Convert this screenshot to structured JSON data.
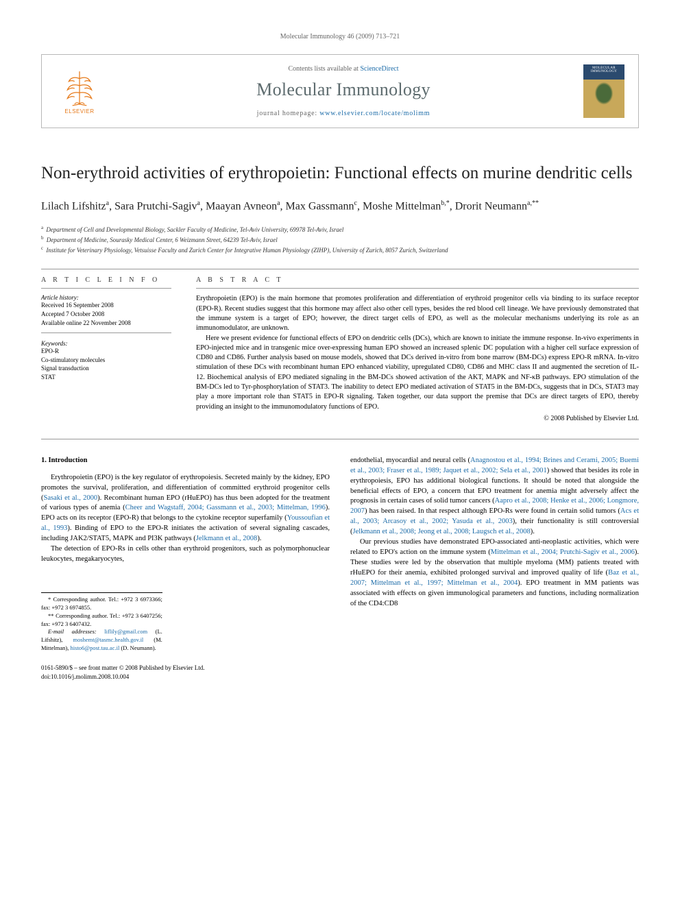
{
  "header": {
    "running": "Molecular Immunology 46 (2009) 713–721"
  },
  "masthead": {
    "publisher_text": "ELSEVIER",
    "contents_prefix": "Contents lists available at ",
    "contents_link": "ScienceDirect",
    "journal_name": "Molecular Immunology",
    "homepage_prefix": "journal homepage: ",
    "homepage_link": "www.elsevier.com/locate/molimm",
    "cover_label": "MOLECULAR IMMUNOLOGY"
  },
  "title": "Non-erythroid activities of erythropoietin: Functional effects on murine dendritic cells",
  "authors_html": "Lilach Lifshitz<sup>a</sup>, Sara Prutchi-Sagiv<sup>a</sup>, Maayan Avneon<sup>a</sup>, Max Gassmann<sup>c</sup>, Moshe Mittelman<sup>b,*</sup>, Drorit Neumann<sup>a,**</sup>",
  "affiliations": [
    {
      "sup": "a",
      "text": "Department of Cell and Developmental Biology, Sackler Faculty of Medicine, Tel-Aviv University, 69978 Tel-Aviv, Israel"
    },
    {
      "sup": "b",
      "text": "Department of Medicine, Sourasky Medical Center, 6 Weizmann Street, 64239 Tel-Aviv, Israel"
    },
    {
      "sup": "c",
      "text": "Institute for Veterinary Physiology, Vetsuisse Faculty and Zurich Center for Integrative Human Physiology (ZIHP), University of Zurich, 8057 Zurich, Switzerland"
    }
  ],
  "info": {
    "head": "A R T I C L E   I N F O",
    "history_label": "Article history:",
    "history": [
      "Received 16 September 2008",
      "Accepted 7 October 2008",
      "Available online 22 November 2008"
    ],
    "keywords_label": "Keywords:",
    "keywords": [
      "EPO-R",
      "Co-stimulatory molecules",
      "Signal transduction",
      "STAT"
    ]
  },
  "abstract": {
    "head": "A B S T R A C T",
    "paras": [
      "Erythropoietin (EPO) is the main hormone that promotes proliferation and differentiation of erythroid progenitor cells via binding to its surface receptor (EPO-R). Recent studies suggest that this hormone may affect also other cell types, besides the red blood cell lineage. We have previously demonstrated that the immune system is a target of EPO; however, the direct target cells of EPO, as well as the molecular mechanisms underlying its role as an immunomodulator, are unknown.",
      "Here we present evidence for functional effects of EPO on dendritic cells (DCs), which are known to initiate the immune response. In-vivo experiments in EPO-injected mice and in transgenic mice over-expressing human EPO showed an increased splenic DC population with a higher cell surface expression of CD80 and CD86. Further analysis based on mouse models, showed that DCs derived in-vitro from bone marrow (BM-DCs) express EPO-R mRNA. In-vitro stimulation of these DCs with recombinant human EPO enhanced viability, upregulated CD80, CD86 and MHC class II and augmented the secretion of IL-12. Biochemical analysis of EPO mediated signaling in the BM-DCs showed activation of the AKT, MAPK and NF-κB pathways. EPO stimulation of the BM-DCs led to Tyr-phosphorylation of STAT3. The inability to detect EPO mediated activation of STAT5 in the BM-DCs, suggests that in DCs, STAT3 may play a more important role than STAT5 in EPO-R signaling. Taken together, our data support the premise that DCs are direct targets of EPO, thereby providing an insight to the immunomodulatory functions of EPO."
    ],
    "copyright": "© 2008 Published by Elsevier Ltd."
  },
  "body": {
    "section_head": "1.  Introduction",
    "left": {
      "p1a": "Erythropoietin (EPO) is the key regulator of erythropoiesis. Secreted mainly by the kidney, EPO promotes the survival, proliferation, and differentiation of committed erythroid progenitor cells (",
      "c1": "Sasaki et al., 2000",
      "p1b": "). Recombinant human EPO (rHuEPO) has thus been adopted for the treatment of various types of anemia (",
      "c2": "Cheer and Wagstaff, 2004; Gassmann et al., 2003; Mittelman, 1996",
      "p1c": "). EPO acts on its receptor (EPO-R) that belongs to the cytokine receptor superfamily (",
      "c3": "Youssoufian et al., 1993",
      "p1d": "). Binding of EPO to the EPO-R initiates the activation of several signaling cascades, including JAK2/STAT5, MAPK and PI3K pathways (",
      "c4": "Jelkmann et al., 2008",
      "p1e": ").",
      "p2": "The detection of EPO-Rs in cells other than erythroid progenitors, such as polymorphonuclear leukocytes, megakaryocytes,"
    },
    "right": {
      "p1a": "endothelial, myocardial and neural cells (",
      "c1": "Anagnostou et al., 1994; Brines and Cerami, 2005; Buemi et al., 2003; Fraser et al., 1989; Jaquet et al., 2002; Sela et al., 2001",
      "p1b": ") showed that besides its role in erythropoiesis, EPO has additional biological functions. It should be noted that alongside the beneficial effects of EPO, a concern that EPO treatment for anemia might adversely affect the prognosis in certain cases of solid tumor cancers (",
      "c2": "Aapro et al., 2008; Henke et al., 2006; Longmore, 2007",
      "p1c": ") has been raised. In that respect although EPO-Rs were found in certain solid tumors (",
      "c3": "Acs et al., 2003; Arcasoy et al., 2002; Yasuda et al., 2003",
      "p1d": "), their functionality is still controversial (",
      "c4": "Jelkmann et al., 2008; Jeong et al., 2008; Laugsch et al., 2008",
      "p1e": ").",
      "p2a": "Our previous studies have demonstrated EPO-associated anti-neoplastic activities, which were related to EPO's action on the immune system (",
      "c5": "Mittelman et al., 2004; Prutchi-Sagiv et al., 2006",
      "p2b": "). These studies were led by the observation that multiple myeloma (MM) patients treated with rHuEPO for their anemia, exhibited prolonged survival and improved quality of life (",
      "c6": "Baz et al., 2007; Mittelman et al., 1997; Mittelman et al., 2004",
      "p2c": "). EPO treatment in MM patients was associated with effects on given immunological parameters and functions, including normalization of the CD4:CD8"
    }
  },
  "footnotes": {
    "f1": "* Corresponding author. Tel.: +972 3 6973366; fax: +972 3 6974855.",
    "f2": "** Corresponding author. Tel.: +972 3 6407256; fax: +972 3 6407432.",
    "em_label": "E-mail addresses:",
    "em1": "liflily@gmail.com",
    "em1_who": " (L. Lifshitz), ",
    "em2": "moshemt@tasmc.health.gov.il",
    "em2_who": " (M. Mittelman), ",
    "em3": "histo6@post.tau.ac.il",
    "em3_who": " (D. Neumann)."
  },
  "footer": {
    "l1": "0161-5890/$ – see front matter © 2008 Published by Elsevier Ltd.",
    "l2": "doi:10.1016/j.molimm.2008.10.004"
  }
}
